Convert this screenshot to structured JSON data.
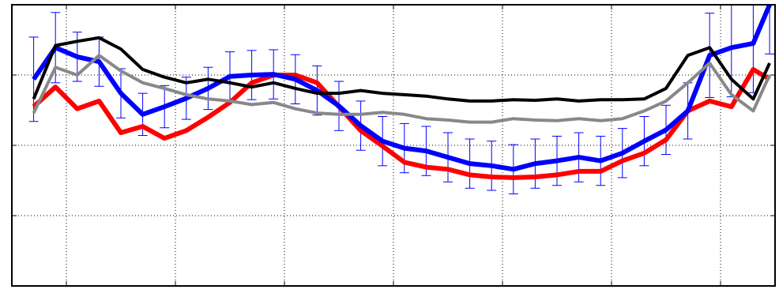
{
  "chart_data": {
    "type": "line",
    "x": [
      0.7,
      0.9,
      1.1,
      1.3,
      1.5,
      1.7,
      1.9,
      2.1,
      2.3,
      2.5,
      2.7,
      2.9,
      3.1,
      3.3,
      3.5,
      3.7,
      3.9,
      4.1,
      4.3,
      4.5,
      4.7,
      4.9,
      5.1,
      5.3,
      5.5,
      5.7,
      5.9,
      6.1,
      6.3,
      6.5,
      6.7,
      6.9,
      7.1,
      7.3,
      7.45
    ],
    "xlim": [
      0.5,
      7.5
    ],
    "xticks": [
      1,
      2,
      3,
      4,
      5,
      6,
      7
    ],
    "ylim": [
      0,
      4
    ],
    "yticks": [
      1,
      2,
      3
    ],
    "grid": true,
    "series": [
      {
        "color": "#ff0000",
        "width": 6,
        "values": [
          2.55,
          2.83,
          2.52,
          2.63,
          2.18,
          2.27,
          2.1,
          2.21,
          2.4,
          2.61,
          2.89,
          3.0,
          3.0,
          2.89,
          2.55,
          2.21,
          1.99,
          1.76,
          1.69,
          1.66,
          1.58,
          1.55,
          1.54,
          1.55,
          1.58,
          1.63,
          1.63,
          1.78,
          1.89,
          2.08,
          2.49,
          2.63,
          2.55,
          3.08,
          2.94
        ]
      },
      {
        "color": "#0000ff",
        "width": 6,
        "error_color": "#0000ff",
        "values": [
          2.94,
          3.39,
          3.26,
          3.19,
          2.74,
          2.44,
          2.55,
          2.67,
          2.81,
          2.98,
          3.0,
          3.01,
          2.94,
          2.78,
          2.56,
          2.28,
          2.06,
          1.96,
          1.92,
          1.83,
          1.74,
          1.71,
          1.66,
          1.74,
          1.78,
          1.83,
          1.78,
          1.89,
          2.06,
          2.22,
          2.49,
          3.28,
          3.39,
          3.45,
          4.0
        ],
        "errors": [
          0.6,
          0.5,
          0.35,
          0.35,
          0.35,
          0.3,
          0.3,
          0.3,
          0.3,
          0.35,
          0.35,
          0.35,
          0.35,
          0.35,
          0.35,
          0.35,
          0.35,
          0.35,
          0.35,
          0.35,
          0.35,
          0.35,
          0.35,
          0.35,
          0.35,
          0.35,
          0.35,
          0.35,
          0.35,
          0.35,
          0.4,
          0.6,
          0.7,
          0.7,
          0.7
        ]
      },
      {
        "color": "#888888",
        "width": 4,
        "values": [
          2.46,
          3.11,
          3.0,
          3.28,
          3.06,
          2.89,
          2.81,
          2.72,
          2.66,
          2.63,
          2.58,
          2.61,
          2.52,
          2.46,
          2.44,
          2.44,
          2.47,
          2.44,
          2.38,
          2.36,
          2.33,
          2.33,
          2.38,
          2.36,
          2.35,
          2.38,
          2.35,
          2.38,
          2.49,
          2.63,
          2.89,
          3.17,
          2.72,
          2.49,
          3.0
        ]
      },
      {
        "color": "#000000",
        "width": 4,
        "values": [
          2.66,
          3.42,
          3.48,
          3.53,
          3.37,
          3.08,
          2.97,
          2.89,
          2.94,
          2.89,
          2.83,
          2.89,
          2.81,
          2.74,
          2.74,
          2.78,
          2.74,
          2.72,
          2.7,
          2.66,
          2.63,
          2.63,
          2.65,
          2.64,
          2.66,
          2.63,
          2.65,
          2.65,
          2.66,
          2.81,
          3.28,
          3.39,
          2.94,
          2.66,
          3.17
        ]
      }
    ]
  }
}
